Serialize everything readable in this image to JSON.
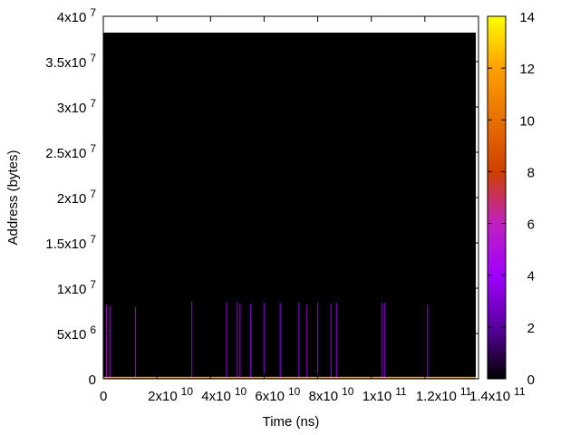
{
  "chart_data": {
    "type": "heatmap",
    "xlabel": "Time (ns)",
    "ylabel": "Address (bytes)",
    "xlim": [
      0,
      140000000000
    ],
    "ylim": [
      0,
      40000000
    ],
    "x_ticks": [
      {
        "value": 0,
        "mant": "0",
        "exp": ""
      },
      {
        "value": 20000000000,
        "mant": "2x10",
        "exp": "10"
      },
      {
        "value": 40000000000,
        "mant": "4x10",
        "exp": "10"
      },
      {
        "value": 60000000000,
        "mant": "6x10",
        "exp": "10"
      },
      {
        "value": 80000000000,
        "mant": "8x10",
        "exp": "10"
      },
      {
        "value": 100000000000,
        "mant": "1x10",
        "exp": "11"
      },
      {
        "value": 120000000000,
        "mant": "1.2x10",
        "exp": "11"
      },
      {
        "value": 140000000000,
        "mant": "1.4x10",
        "exp": "11"
      }
    ],
    "y_ticks": [
      {
        "value": 0,
        "mant": "0",
        "exp": ""
      },
      {
        "value": 5000000,
        "mant": "5x10",
        "exp": "6"
      },
      {
        "value": 10000000,
        "mant": "1x10",
        "exp": "7"
      },
      {
        "value": 15000000,
        "mant": "1.5x10",
        "exp": "7"
      },
      {
        "value": 20000000,
        "mant": "2x10",
        "exp": "7"
      },
      {
        "value": 25000000,
        "mant": "2.5x10",
        "exp": "7"
      },
      {
        "value": 30000000,
        "mant": "3x10",
        "exp": "7"
      },
      {
        "value": 35000000,
        "mant": "3.5x10",
        "exp": "7"
      },
      {
        "value": 40000000,
        "mant": "4x10",
        "exp": "7"
      }
    ],
    "heatmap_extent": {
      "x": [
        0,
        139000000000
      ],
      "y": [
        0,
        38200000
      ]
    },
    "colorbar": {
      "range": [
        0,
        14
      ],
      "ticks": [
        "0",
        "2",
        "4",
        "6",
        "8",
        "10",
        "12",
        "14"
      ],
      "palette": [
        "#000000",
        "#5a00a0",
        "#a000ff",
        "#c020c0",
        "#d04000",
        "#e87000",
        "#ffa000",
        "#ffff00"
      ]
    },
    "background_value": 0,
    "access_lines": [
      {
        "x": 1200000000,
        "y_top": 8200000,
        "value": 5
      },
      {
        "x": 2500000000,
        "y_top": 8000000,
        "value": 5
      },
      {
        "x": 12000000000,
        "y_top": 7900000,
        "value": 5
      },
      {
        "x": 33000000000,
        "y_top": 8500000,
        "value": 4
      },
      {
        "x": 46000000000,
        "y_top": 8500000,
        "value": 4
      },
      {
        "x": 50000000000,
        "y_top": 8500000,
        "value": 4
      },
      {
        "x": 51000000000,
        "y_top": 8300000,
        "value": 4
      },
      {
        "x": 55000000000,
        "y_top": 8300000,
        "value": 4
      },
      {
        "x": 60000000000,
        "y_top": 8400000,
        "value": 4
      },
      {
        "x": 66000000000,
        "y_top": 8400000,
        "value": 4
      },
      {
        "x": 73000000000,
        "y_top": 8400000,
        "value": 4
      },
      {
        "x": 76000000000,
        "y_top": 8200000,
        "value": 4
      },
      {
        "x": 80000000000,
        "y_top": 8400000,
        "value": 4
      },
      {
        "x": 85000000000,
        "y_top": 8300000,
        "value": 4
      },
      {
        "x": 87000000000,
        "y_top": 8400000,
        "value": 4
      },
      {
        "x": 104000000000,
        "y_top": 8400000,
        "value": 4
      },
      {
        "x": 105000000000,
        "y_top": 8400000,
        "value": 4
      },
      {
        "x": 121000000000,
        "y_top": 8200000,
        "value": 4
      }
    ],
    "baseline_band": {
      "y_top": 120000,
      "value": 12
    },
    "grid": false,
    "legend": "none"
  }
}
